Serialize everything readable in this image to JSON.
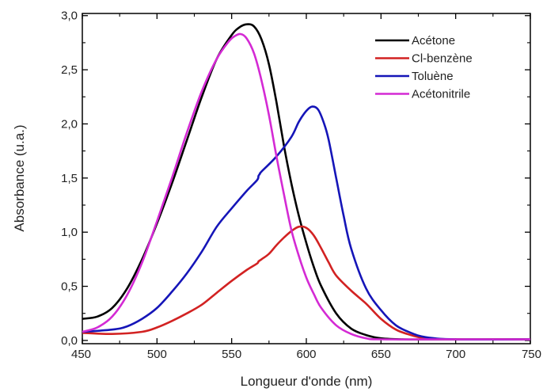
{
  "chart_data": {
    "type": "line",
    "xlabel": "Longueur d'onde (nm)",
    "ylabel": "Absorbance (u.a.)",
    "xlim": [
      450,
      750
    ],
    "ylim": [
      -0.03,
      3.02
    ],
    "xticks": [
      450,
      500,
      550,
      600,
      650,
      700,
      750
    ],
    "xtick_labels": [
      "450",
      "500",
      "550",
      "600",
      "650",
      "700",
      "750"
    ],
    "yticks": [
      0.0,
      0.5,
      1.0,
      1.5,
      2.0,
      2.5,
      3.0
    ],
    "ytick_labels": [
      "0,0",
      "0,5",
      "1,0",
      "1,5",
      "2,0",
      "2,5",
      "3,0"
    ],
    "legend_position": "top-right",
    "grid": false,
    "series": [
      {
        "name": "Acétone",
        "color": "#000000",
        "points": [
          [
            450,
            0.2
          ],
          [
            460,
            0.22
          ],
          [
            470,
            0.3
          ],
          [
            480,
            0.48
          ],
          [
            490,
            0.75
          ],
          [
            500,
            1.08
          ],
          [
            510,
            1.45
          ],
          [
            520,
            1.85
          ],
          [
            530,
            2.25
          ],
          [
            540,
            2.6
          ],
          [
            550,
            2.82
          ],
          [
            555,
            2.89
          ],
          [
            560,
            2.92
          ],
          [
            565,
            2.9
          ],
          [
            570,
            2.78
          ],
          [
            575,
            2.55
          ],
          [
            580,
            2.2
          ],
          [
            585,
            1.8
          ],
          [
            590,
            1.45
          ],
          [
            595,
            1.15
          ],
          [
            600,
            0.9
          ],
          [
            605,
            0.68
          ],
          [
            610,
            0.5
          ],
          [
            620,
            0.25
          ],
          [
            630,
            0.11
          ],
          [
            640,
            0.05
          ],
          [
            650,
            0.02
          ],
          [
            665,
            0.01
          ],
          [
            700,
            0.01
          ],
          [
            750,
            0.01
          ]
        ]
      },
      {
        "name": "Cl-benzène",
        "color": "#d22222",
        "points": [
          [
            450,
            0.07
          ],
          [
            470,
            0.06
          ],
          [
            490,
            0.08
          ],
          [
            500,
            0.12
          ],
          [
            510,
            0.18
          ],
          [
            520,
            0.25
          ],
          [
            530,
            0.33
          ],
          [
            540,
            0.44
          ],
          [
            550,
            0.55
          ],
          [
            560,
            0.65
          ],
          [
            567,
            0.71
          ],
          [
            568,
            0.73
          ],
          [
            570,
            0.75
          ],
          [
            575,
            0.8
          ],
          [
            580,
            0.88
          ],
          [
            585,
            0.95
          ],
          [
            590,
            1.01
          ],
          [
            595,
            1.05
          ],
          [
            600,
            1.04
          ],
          [
            605,
            0.97
          ],
          [
            610,
            0.85
          ],
          [
            615,
            0.72
          ],
          [
            620,
            0.6
          ],
          [
            630,
            0.46
          ],
          [
            640,
            0.34
          ],
          [
            650,
            0.2
          ],
          [
            660,
            0.1
          ],
          [
            670,
            0.05
          ],
          [
            680,
            0.02
          ],
          [
            700,
            0.01
          ],
          [
            750,
            0.01
          ]
        ]
      },
      {
        "name": "Toluène",
        "color": "#1515b8",
        "points": [
          [
            450,
            0.08
          ],
          [
            470,
            0.1
          ],
          [
            480,
            0.13
          ],
          [
            490,
            0.2
          ],
          [
            500,
            0.3
          ],
          [
            510,
            0.45
          ],
          [
            520,
            0.62
          ],
          [
            530,
            0.82
          ],
          [
            540,
            1.05
          ],
          [
            550,
            1.22
          ],
          [
            560,
            1.38
          ],
          [
            567,
            1.48
          ],
          [
            568,
            1.52
          ],
          [
            569,
            1.54
          ],
          [
            570,
            1.56
          ],
          [
            580,
            1.7
          ],
          [
            590,
            1.88
          ],
          [
            595,
            2.02
          ],
          [
            600,
            2.12
          ],
          [
            604,
            2.16
          ],
          [
            608,
            2.13
          ],
          [
            612,
            2.0
          ],
          [
            615,
            1.85
          ],
          [
            620,
            1.5
          ],
          [
            625,
            1.15
          ],
          [
            630,
            0.85
          ],
          [
            640,
            0.48
          ],
          [
            650,
            0.28
          ],
          [
            660,
            0.14
          ],
          [
            670,
            0.07
          ],
          [
            680,
            0.03
          ],
          [
            700,
            0.01
          ],
          [
            750,
            0.01
          ]
        ]
      },
      {
        "name": "Acétonitrile",
        "color": "#d42ad4",
        "points": [
          [
            450,
            0.08
          ],
          [
            460,
            0.12
          ],
          [
            470,
            0.22
          ],
          [
            480,
            0.42
          ],
          [
            490,
            0.72
          ],
          [
            500,
            1.1
          ],
          [
            510,
            1.5
          ],
          [
            520,
            1.92
          ],
          [
            530,
            2.3
          ],
          [
            540,
            2.6
          ],
          [
            548,
            2.76
          ],
          [
            552,
            2.81
          ],
          [
            556,
            2.83
          ],
          [
            560,
            2.79
          ],
          [
            565,
            2.65
          ],
          [
            570,
            2.4
          ],
          [
            575,
            2.08
          ],
          [
            580,
            1.7
          ],
          [
            585,
            1.35
          ],
          [
            590,
            1.02
          ],
          [
            595,
            0.78
          ],
          [
            600,
            0.58
          ],
          [
            605,
            0.43
          ],
          [
            610,
            0.3
          ],
          [
            620,
            0.14
          ],
          [
            630,
            0.06
          ],
          [
            640,
            0.02
          ],
          [
            650,
            0.01
          ],
          [
            700,
            0.01
          ],
          [
            750,
            0.01
          ]
        ]
      }
    ]
  }
}
